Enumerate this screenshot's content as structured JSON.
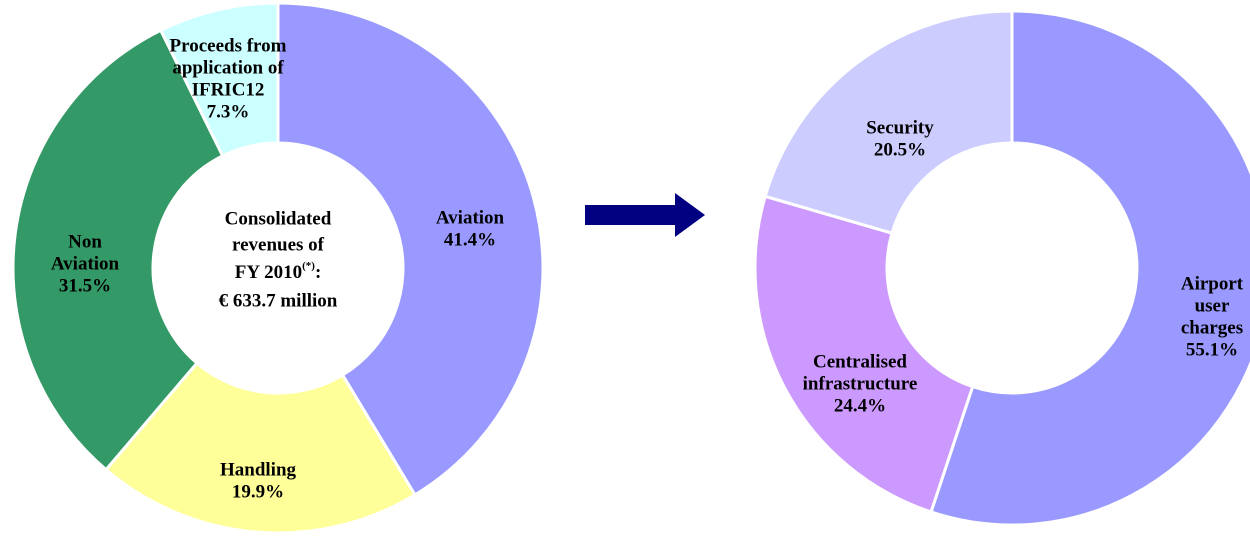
{
  "chart_data": [
    {
      "type": "donut",
      "categories": [
        [
          "Aviation"
        ],
        [
          "Handling"
        ],
        [
          "Non",
          "Aviation"
        ],
        [
          "Proceeds from",
          "application of",
          "IFRIC12"
        ]
      ],
      "values": [
        41.4,
        19.9,
        31.5,
        7.3
      ],
      "value_labels": [
        "41.4%",
        "19.9%",
        "31.5%",
        "7.3%"
      ],
      "colors": [
        "#9999ff",
        "#ffff99",
        "#339966",
        "#ccffff"
      ],
      "center_text": {
        "lines": [
          "Consolidated",
          "revenues of"
        ],
        "fy": "FY 2010",
        "note": "(*)",
        "colon": ":",
        "amount": "€ 633.7 million"
      }
    },
    {
      "type": "donut",
      "categories": [
        [
          "Airport",
          "user",
          "charges"
        ],
        [
          "Centralised",
          "infrastructure"
        ],
        [
          "Security"
        ]
      ],
      "values": [
        55.1,
        24.4,
        20.5
      ],
      "value_labels": [
        "55.1%",
        "24.4%",
        "20.5%"
      ],
      "colors": [
        "#9999ff",
        "#cc99ff",
        "#ccccff"
      ]
    }
  ]
}
